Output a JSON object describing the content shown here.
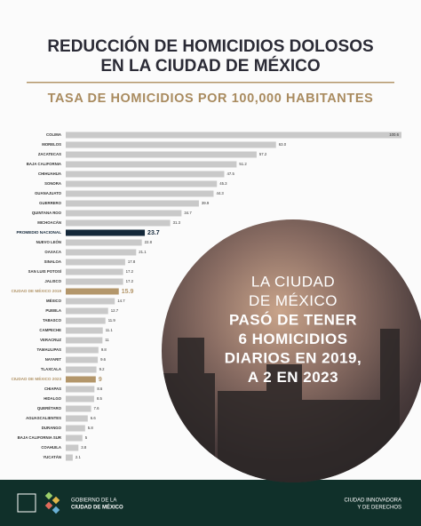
{
  "chart_data": {
    "type": "hbar",
    "title_lines": [
      "REDUCCIÓN DE HOMICIDIOS DOLOSOS",
      "EN LA CIUDAD DE MÉXICO"
    ],
    "subtitle": "TASA DE HOMICIDIOS POR 100,000 HABITANTES",
    "categories": [
      "COLIMA",
      "MORELOS",
      "ZACATECAS",
      "BAJA CALIFORNIA",
      "CHIHUAHUA",
      "SONORA",
      "GUANAJUATO",
      "GUERRERO",
      "QUINTANA ROO",
      "MICHOACÁN",
      "PROMEDIO NACIONAL",
      "NUEVO LEÓN",
      "OAXACA",
      "SINALOA",
      "SAN LUIS POTOSÍ",
      "JALISCO",
      "CIUDAD DE MÉXICO 2019",
      "MÉXICO",
      "PUEBLA",
      "TABASCO",
      "CAMPECHE",
      "VERACRUZ",
      "TAMAULIPAS",
      "NAYARIT",
      "TLAXCALA",
      "CIUDAD DE MÉXICO 2023",
      "CHIAPAS",
      "HIDALGO",
      "QUERÉTARO",
      "AGUASCALIENTES",
      "DURANGO",
      "BAJA CALIFORNIA SUR",
      "COAHUILA",
      "YUCATÁN"
    ],
    "values": [
      100.6,
      63,
      57.2,
      51.2,
      47.5,
      45.3,
      44.3,
      39.9,
      34.7,
      31.3,
      23.7,
      22.8,
      21.1,
      17.8,
      17.2,
      17.2,
      15.9,
      14.7,
      12.7,
      11.9,
      11.1,
      11,
      9.8,
      9.6,
      9.2,
      9,
      8.6,
      8.5,
      7.6,
      6.6,
      5.8,
      5,
      3.8,
      2.1
    ],
    "value_labels": [
      "100.6",
      "63.0",
      "57.2",
      "51.2",
      "47.5",
      "45.3",
      "44.3",
      "39.9",
      "34.7",
      "31.3",
      "23.7",
      "22.8",
      "21.1",
      "17.8",
      "17.2",
      "17.2",
      "15.9",
      "14.7",
      "12.7",
      "11.9",
      "11.1",
      "11",
      "9.8",
      "9.6",
      "9.2",
      "9",
      "8.6",
      "8.5",
      "7.6",
      "6.6",
      "5.8",
      "5",
      "3.8",
      "2.1"
    ],
    "color": "#c9c9c9",
    "colors": [
      "#c9c9c9",
      "#c9c9c9",
      "#c9c9c9",
      "#c9c9c9",
      "#c9c9c9",
      "#c9c9c9",
      "#c9c9c9",
      "#c9c9c9",
      "#c9c9c9",
      "#c9c9c9",
      "#14283a",
      "#c9c9c9",
      "#c9c9c9",
      "#c9c9c9",
      "#c9c9c9",
      "#c9c9c9",
      "#b3966a",
      "#c9c9c9",
      "#c9c9c9",
      "#c9c9c9",
      "#c9c9c9",
      "#c9c9c9",
      "#c9c9c9",
      "#c9c9c9",
      "#c9c9c9",
      "#b3966a",
      "#c9c9c9",
      "#c9c9c9",
      "#c9c9c9",
      "#c9c9c9",
      "#c9c9c9",
      "#c9c9c9",
      "#c9c9c9",
      "#c9c9c9"
    ],
    "annotations": [
      "LA CIUDAD",
      "DE MÉXICO",
      "PASÓ DE TENER",
      "6 HOMICIDIOS",
      "DIARIOS EN 2019,",
      "A 2 EN 2023"
    ]
  },
  "footer": {
    "left_lines": [
      "GOBIERNO DE LA",
      "CIUDAD DE MÉXICO"
    ],
    "right_lines": [
      "CIUDAD INNOVADORA",
      "Y DE DERECHOS"
    ]
  }
}
